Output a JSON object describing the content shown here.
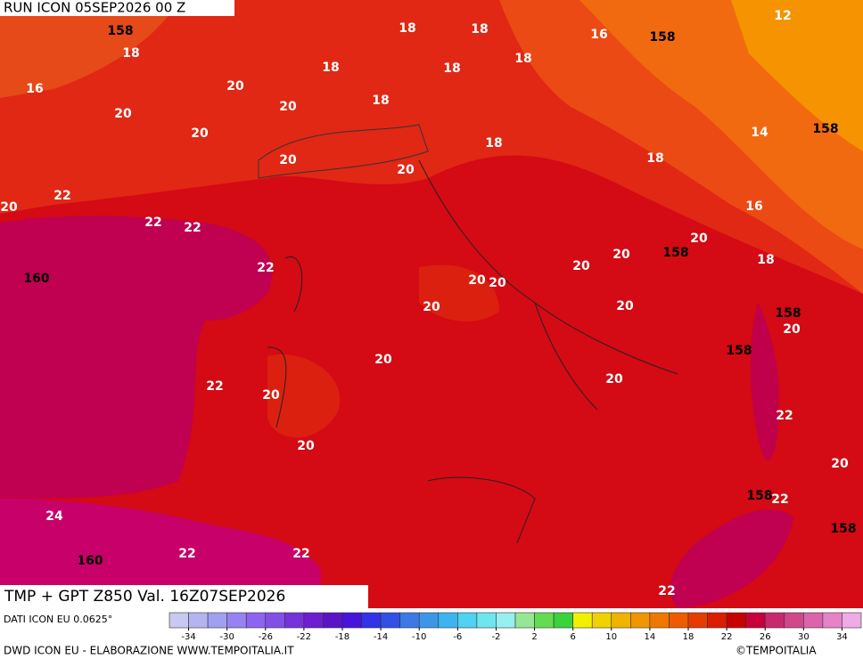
{
  "header": {
    "run": "RUN ICON 05SEP2026 00 Z"
  },
  "map": {
    "contour_labels": [
      158,
      18,
      16,
      20,
      20,
      20,
      20,
      20,
      18,
      18,
      18,
      18,
      18,
      18,
      16,
      158,
      12,
      18,
      18,
      14,
      158,
      16,
      20,
      22,
      20,
      22,
      22,
      22,
      160,
      20,
      20,
      158,
      18,
      20,
      20,
      20,
      20,
      20,
      158,
      20,
      158,
      20,
      22,
      20,
      20,
      22,
      20,
      20,
      158,
      22,
      158,
      24,
      22,
      22,
      160,
      22
    ]
  },
  "caption": "TMP + GPT Z850 Val. 16Z07SEP2026",
  "source": "DATI ICON EU 0.0625°",
  "colorbar": {
    "lim": [
      -36,
      36
    ],
    "ticks": [
      -34,
      -30,
      -26,
      -22,
      -18,
      -14,
      -10,
      -6,
      -2,
      2,
      6,
      10,
      14,
      18,
      22,
      26,
      30,
      34
    ],
    "colors": [
      "#c8c8f0",
      "#b4b4f0",
      "#a0a0f0",
      "#9682f0",
      "#8c64f0",
      "#8250e6",
      "#7832dc",
      "#6e1ed2",
      "#5a14c8",
      "#4614dc",
      "#3232e6",
      "#3250e6",
      "#3c78e6",
      "#3c96e6",
      "#3cb4f0",
      "#50d2f0",
      "#6ee6f0",
      "#96f0f0",
      "#96e696",
      "#64dc50",
      "#3cd23c",
      "#f0f000",
      "#f0d200",
      "#f0b400",
      "#f09600",
      "#f07800",
      "#f05a00",
      "#e63c00",
      "#dc1e00",
      "#c80000",
      "#c8003c",
      "#c8286e",
      "#d2468c",
      "#dc64aa",
      "#e682c8",
      "#f0aae6"
    ]
  },
  "footer": {
    "credit": "DWD ICON EU - ELABORAZIONE WWW.TEMPOITALIA.IT",
    "copyright": "©TEMPOITALIA"
  }
}
